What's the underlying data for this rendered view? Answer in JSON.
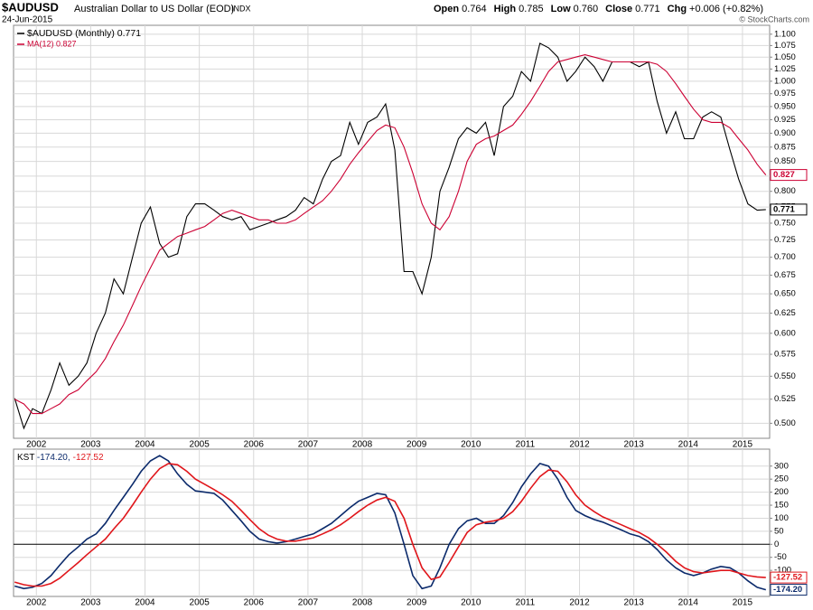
{
  "header": {
    "symbol": "$AUDUSD",
    "name": "Australian Dollar to US Dollar (EOD)",
    "exchange": "INDX",
    "date": "24-Jun-2015",
    "stats": [
      {
        "label": "Open",
        "value": "0.764"
      },
      {
        "label": "High",
        "value": "0.785"
      },
      {
        "label": "Low",
        "value": "0.760"
      },
      {
        "label": "Close",
        "value": "0.771"
      },
      {
        "label": "Chg",
        "value": "+0.006 (+0.82%)"
      }
    ],
    "credit": "© StockCharts.com"
  },
  "chart_data": [
    {
      "type": "line",
      "ylog": true,
      "grid": true,
      "xlim": [
        2001.58,
        2015.5
      ],
      "xticks": [
        2002,
        2003,
        2004,
        2005,
        2006,
        2007,
        2008,
        2009,
        2010,
        2011,
        2012,
        2013,
        2014,
        2015
      ],
      "ylim": [
        0.485,
        1.12
      ],
      "yticks": [
        {
          "value": 0.5,
          "label": "0.500"
        },
        {
          "value": 0.525,
          "label": "0.525"
        },
        {
          "value": 0.55,
          "label": "0.550"
        },
        {
          "value": 0.575,
          "label": "0.575"
        },
        {
          "value": 0.6,
          "label": "0.600"
        },
        {
          "value": 0.625,
          "label": "0.625"
        },
        {
          "value": 0.65,
          "label": "0.650"
        },
        {
          "value": 0.675,
          "label": "0.675"
        },
        {
          "value": 0.7,
          "label": "0.700"
        },
        {
          "value": 0.725,
          "label": "0.725"
        },
        {
          "value": 0.75,
          "label": "0.750"
        },
        {
          "value": 0.775,
          "label": "0.775"
        },
        {
          "value": 0.8,
          "label": "0.800"
        },
        {
          "value": 0.825,
          "label": "0.825"
        },
        {
          "value": 0.85,
          "label": "0.850"
        },
        {
          "value": 0.875,
          "label": "0.875"
        },
        {
          "value": 0.9,
          "label": "0.900"
        },
        {
          "value": 0.925,
          "label": "0.925"
        },
        {
          "value": 0.95,
          "label": "0.950"
        },
        {
          "value": 0.975,
          "label": "0.975"
        },
        {
          "value": 1.0,
          "label": "1.000"
        },
        {
          "value": 1.025,
          "label": "1.025"
        },
        {
          "value": 1.05,
          "label": "1.050"
        },
        {
          "value": 1.075,
          "label": "1.075"
        },
        {
          "value": 1.1,
          "label": "1.100"
        }
      ],
      "x": [
        2001.6,
        2001.77,
        2001.93,
        2002.1,
        2002.27,
        2002.43,
        2002.6,
        2002.77,
        2002.93,
        2003.1,
        2003.27,
        2003.43,
        2003.6,
        2003.77,
        2003.93,
        2004.1,
        2004.27,
        2004.43,
        2004.6,
        2004.77,
        2004.93,
        2005.1,
        2005.27,
        2005.43,
        2005.6,
        2005.77,
        2005.93,
        2006.1,
        2006.27,
        2006.43,
        2006.6,
        2006.77,
        2006.93,
        2007.1,
        2007.27,
        2007.43,
        2007.6,
        2007.77,
        2007.93,
        2008.1,
        2008.27,
        2008.43,
        2008.6,
        2008.77,
        2008.93,
        2009.1,
        2009.27,
        2009.43,
        2009.6,
        2009.77,
        2009.93,
        2010.1,
        2010.27,
        2010.43,
        2010.6,
        2010.77,
        2010.93,
        2011.1,
        2011.27,
        2011.43,
        2011.6,
        2011.77,
        2011.93,
        2012.1,
        2012.27,
        2012.43,
        2012.6,
        2012.77,
        2012.93,
        2013.1,
        2013.27,
        2013.43,
        2013.6,
        2013.77,
        2013.93,
        2014.1,
        2014.27,
        2014.43,
        2014.6,
        2014.77,
        2014.93,
        2015.1,
        2015.27,
        2015.43
      ],
      "series": [
        {
          "name": "$AUDUSD (Monthly) 0.771",
          "color": "#000000",
          "last_label": "0.771",
          "values": [
            0.526,
            0.495,
            0.515,
            0.51,
            0.535,
            0.565,
            0.54,
            0.55,
            0.565,
            0.6,
            0.625,
            0.67,
            0.65,
            0.7,
            0.75,
            0.775,
            0.72,
            0.7,
            0.705,
            0.76,
            0.78,
            0.78,
            0.77,
            0.76,
            0.755,
            0.76,
            0.74,
            0.745,
            0.75,
            0.755,
            0.76,
            0.77,
            0.79,
            0.78,
            0.82,
            0.85,
            0.86,
            0.92,
            0.88,
            0.92,
            0.93,
            0.955,
            0.87,
            0.68,
            0.68,
            0.65,
            0.7,
            0.8,
            0.84,
            0.89,
            0.91,
            0.9,
            0.92,
            0.86,
            0.95,
            0.97,
            1.02,
            1.0,
            1.08,
            1.07,
            1.05,
            1.0,
            1.02,
            1.05,
            1.03,
            1.0,
            1.04,
            1.04,
            1.04,
            1.03,
            1.04,
            0.96,
            0.9,
            0.94,
            0.89,
            0.89,
            0.93,
            0.94,
            0.93,
            0.87,
            0.82,
            0.78,
            0.77,
            0.771
          ]
        },
        {
          "name": "MA(12) 0.827",
          "color": "#cc0033",
          "last_label": "0.827",
          "values": [
            0.525,
            0.52,
            0.51,
            0.51,
            0.515,
            0.52,
            0.53,
            0.535,
            0.545,
            0.555,
            0.57,
            0.59,
            0.61,
            0.635,
            0.66,
            0.685,
            0.71,
            0.72,
            0.73,
            0.735,
            0.74,
            0.745,
            0.755,
            0.765,
            0.77,
            0.765,
            0.76,
            0.755,
            0.755,
            0.75,
            0.75,
            0.755,
            0.765,
            0.775,
            0.785,
            0.8,
            0.82,
            0.845,
            0.865,
            0.885,
            0.905,
            0.915,
            0.91,
            0.875,
            0.83,
            0.78,
            0.75,
            0.74,
            0.76,
            0.8,
            0.85,
            0.88,
            0.89,
            0.895,
            0.905,
            0.915,
            0.935,
            0.96,
            0.99,
            1.02,
            1.04,
            1.045,
            1.05,
            1.055,
            1.05,
            1.045,
            1.04,
            1.04,
            1.04,
            1.04,
            1.04,
            1.035,
            1.02,
            0.995,
            0.97,
            0.945,
            0.925,
            0.92,
            0.92,
            0.91,
            0.89,
            0.87,
            0.845,
            0.827
          ]
        }
      ]
    },
    {
      "type": "line",
      "ylog": false,
      "grid": true,
      "legend": [
        "KST",
        "-174.20,",
        "-127.52"
      ],
      "xlim": [
        2001.58,
        2015.5
      ],
      "xticks": [
        2002,
        2003,
        2004,
        2005,
        2006,
        2007,
        2008,
        2009,
        2010,
        2011,
        2012,
        2013,
        2014,
        2015
      ],
      "ylim": [
        -200,
        365
      ],
      "yticks": [
        -100,
        -50,
        0,
        50,
        100,
        150,
        200,
        250,
        300
      ],
      "x": [
        2001.6,
        2001.77,
        2001.93,
        2002.1,
        2002.27,
        2002.43,
        2002.6,
        2002.77,
        2002.93,
        2003.1,
        2003.27,
        2003.43,
        2003.6,
        2003.77,
        2003.93,
        2004.1,
        2004.27,
        2004.43,
        2004.6,
        2004.77,
        2004.93,
        2005.1,
        2005.27,
        2005.43,
        2005.6,
        2005.77,
        2005.93,
        2006.1,
        2006.27,
        2006.43,
        2006.6,
        2006.77,
        2006.93,
        2007.1,
        2007.27,
        2007.43,
        2007.6,
        2007.77,
        2007.93,
        2008.1,
        2008.27,
        2008.43,
        2008.6,
        2008.77,
        2008.93,
        2009.1,
        2009.27,
        2009.43,
        2009.6,
        2009.77,
        2009.93,
        2010.1,
        2010.27,
        2010.43,
        2010.6,
        2010.77,
        2010.93,
        2011.1,
        2011.27,
        2011.43,
        2011.6,
        2011.77,
        2011.93,
        2012.1,
        2012.27,
        2012.43,
        2012.6,
        2012.77,
        2012.93,
        2013.1,
        2013.27,
        2013.43,
        2013.6,
        2013.77,
        2013.93,
        2014.1,
        2014.27,
        2014.43,
        2014.6,
        2014.77,
        2014.93,
        2015.1,
        2015.27,
        2015.43
      ],
      "series": [
        {
          "color": "#0b2a6b",
          "last_label": "-174.20",
          "values": [
            -160,
            -170,
            -165,
            -150,
            -120,
            -80,
            -40,
            -10,
            20,
            40,
            80,
            130,
            180,
            230,
            280,
            320,
            340,
            320,
            270,
            230,
            205,
            200,
            195,
            170,
            130,
            90,
            50,
            20,
            10,
            5,
            10,
            20,
            30,
            40,
            60,
            80,
            110,
            140,
            165,
            180,
            195,
            190,
            120,
            0,
            -120,
            -170,
            -160,
            -90,
            0,
            60,
            90,
            100,
            80,
            80,
            110,
            160,
            220,
            270,
            310,
            300,
            250,
            180,
            130,
            110,
            95,
            85,
            70,
            55,
            40,
            30,
            10,
            -20,
            -60,
            -90,
            -110,
            -120,
            -110,
            -95,
            -85,
            -90,
            -110,
            -140,
            -165,
            -174.2
          ]
        },
        {
          "color": "#e0161b",
          "last_label": "-127.52",
          "values": [
            -145,
            -155,
            -160,
            -160,
            -150,
            -130,
            -100,
            -70,
            -40,
            -10,
            20,
            60,
            100,
            150,
            200,
            250,
            290,
            310,
            305,
            280,
            250,
            230,
            210,
            190,
            165,
            130,
            95,
            60,
            35,
            20,
            12,
            12,
            18,
            25,
            40,
            55,
            75,
            100,
            125,
            150,
            170,
            180,
            165,
            100,
            0,
            -90,
            -135,
            -125,
            -70,
            -10,
            45,
            75,
            85,
            90,
            100,
            125,
            165,
            215,
            260,
            285,
            280,
            240,
            190,
            150,
            125,
            105,
            90,
            75,
            60,
            45,
            25,
            0,
            -30,
            -65,
            -90,
            -105,
            -110,
            -105,
            -100,
            -100,
            -110,
            -120,
            -125,
            -127.52
          ]
        }
      ]
    }
  ]
}
